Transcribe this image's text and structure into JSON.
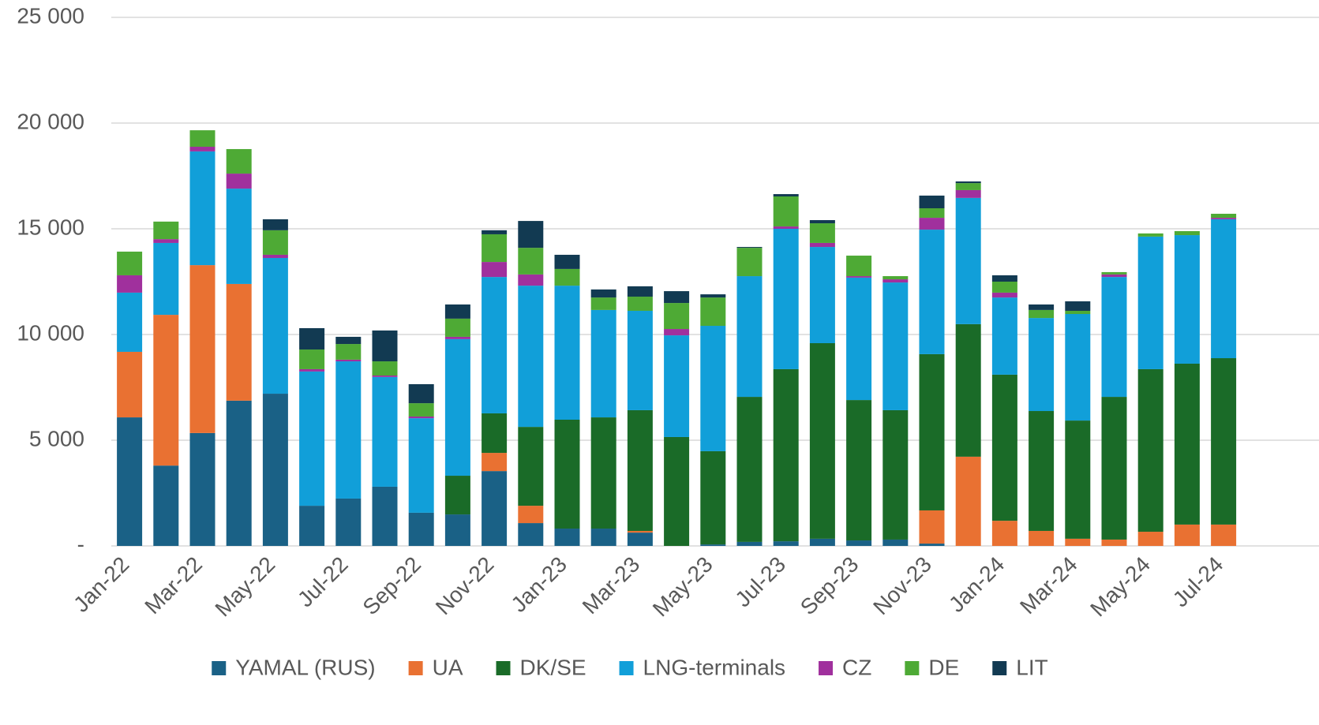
{
  "chart_data": {
    "type": "bar",
    "stacked": true,
    "categories": [
      "Jan-22",
      null,
      "Mar-22",
      null,
      "May-22",
      null,
      "Jul-22",
      null,
      "Sep-22",
      null,
      "Nov-22",
      null,
      "Jan-23",
      null,
      "Mar-23",
      null,
      "May-23",
      null,
      "Jul-23",
      null,
      "Sep-23",
      null,
      "Nov-23",
      null,
      "Jan-24",
      null,
      "Mar-24",
      null,
      "May-24",
      null,
      "Jul-24"
    ],
    "series": [
      {
        "name": "YAMAL (RUS)",
        "color": "#1a6186",
        "values": [
          6080,
          3800,
          5340,
          6870,
          7200,
          1900,
          2240,
          2800,
          1570,
          1490,
          3540,
          1080,
          820,
          820,
          630,
          0,
          70,
          190,
          220,
          340,
          260,
          300,
          110,
          0,
          0,
          0,
          0,
          0,
          0,
          0,
          0
        ]
      },
      {
        "name": "UA",
        "color": "#e97132",
        "values": [
          3100,
          7130,
          7940,
          5520,
          0,
          0,
          0,
          0,
          0,
          0,
          860,
          820,
          0,
          0,
          80,
          0,
          0,
          0,
          0,
          0,
          0,
          0,
          1570,
          4220,
          1190,
          710,
          340,
          300,
          670,
          1010,
          1010
        ]
      },
      {
        "name": "DK/SE",
        "color": "#1a6b28",
        "values": [
          0,
          0,
          0,
          0,
          0,
          0,
          0,
          0,
          0,
          1830,
          1870,
          3730,
          5150,
          5260,
          5710,
          5150,
          4410,
          6860,
          8140,
          9250,
          6640,
          6120,
          7390,
          6270,
          6910,
          5670,
          5590,
          6750,
          7690,
          7610,
          7870
        ]
      },
      {
        "name": "LNG-terminals",
        "color": "#119fd9",
        "values": [
          2800,
          3400,
          5380,
          4510,
          6420,
          6350,
          6490,
          5190,
          4470,
          6460,
          6450,
          6680,
          6340,
          5080,
          4700,
          4810,
          5930,
          5710,
          6640,
          4550,
          5790,
          6040,
          5890,
          5970,
          3650,
          4400,
          5040,
          5670,
          6270,
          6080,
          6570
        ]
      },
      {
        "name": "CZ",
        "color": "#a0309d",
        "values": [
          820,
          180,
          220,
          710,
          150,
          110,
          80,
          70,
          80,
          110,
          710,
          530,
          0,
          0,
          0,
          300,
          0,
          0,
          110,
          190,
          70,
          150,
          560,
          370,
          230,
          0,
          0,
          120,
          0,
          0,
          70
        ]
      },
      {
        "name": "DE",
        "color": "#4eaa35",
        "values": [
          1120,
          830,
          780,
          1160,
          1160,
          930,
          740,
          670,
          630,
          860,
          1310,
          1260,
          790,
          590,
          670,
          1230,
          1340,
          1340,
          1420,
          930,
          970,
          150,
          450,
          330,
          520,
          380,
          150,
          110,
          150,
          190,
          190
        ]
      },
      {
        "name": "LIT",
        "color": "#123a52",
        "values": [
          0,
          0,
          0,
          0,
          520,
          1010,
          340,
          1460,
          900,
          670,
          190,
          1270,
          670,
          380,
          490,
          560,
          150,
          40,
          110,
          150,
          0,
          0,
          600,
          80,
          300,
          260,
          450,
          0,
          0,
          0,
          0
        ]
      }
    ],
    "ylim": [
      0,
      25000
    ],
    "yticks": [
      {
        "value": 0,
        "label": "-"
      },
      {
        "value": 5000,
        "label": "5 000"
      },
      {
        "value": 10000,
        "label": "10 000"
      },
      {
        "value": 15000,
        "label": "15 000"
      },
      {
        "value": 20000,
        "label": "20 000"
      },
      {
        "value": 25000,
        "label": "25 000"
      }
    ],
    "grid": true,
    "legend": "bottom"
  }
}
